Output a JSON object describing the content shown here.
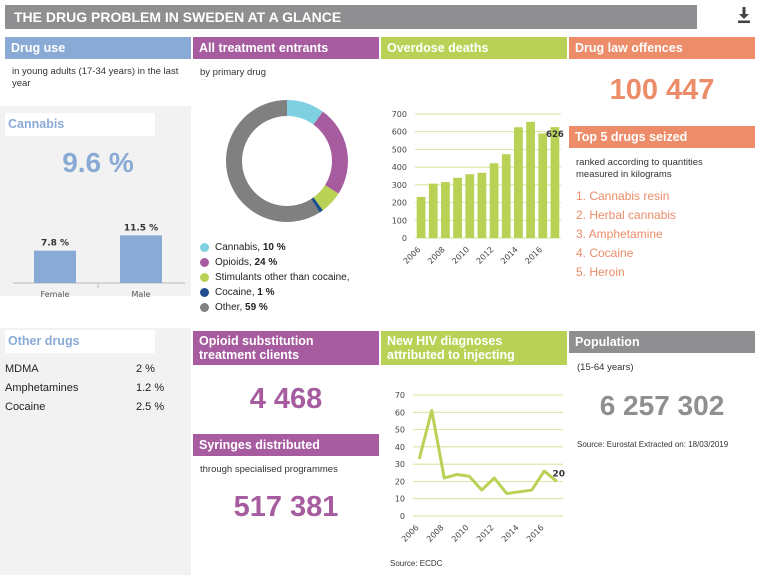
{
  "title": "THE DRUG PROBLEM IN SWEDEN AT A GLANCE",
  "drug_use": {
    "header": "Drug use",
    "subtitle": "in young adults (17-34 years) in the last year",
    "cannabis": {
      "label": "Cannabis",
      "value": "9.6 %",
      "bars": [
        {
          "label": "Female",
          "value": 7.8,
          "value_label": "7.8 %"
        },
        {
          "label": "Male",
          "value": 11.5,
          "value_label": "11.5 %"
        }
      ]
    }
  },
  "treatment": {
    "header": "All treatment entrants",
    "subtitle": "by primary drug",
    "legend": [
      {
        "name": "Cannabis, ",
        "pct": "10 %",
        "value": 10,
        "color": "#7fd0e1"
      },
      {
        "name": "Opioids, ",
        "pct": "24 %",
        "value": 24,
        "color": "#a65c9f"
      },
      {
        "name": "Stimulants other than cocaine,",
        "pct": "",
        "value": 6,
        "color": "#b9d256"
      },
      {
        "name": "Cocaine, ",
        "pct": "1 %",
        "value": 1,
        "color": "#1f4e8c"
      },
      {
        "name": "Other, ",
        "pct": "59 %",
        "value": 59,
        "color": "#808080"
      }
    ]
  },
  "overdose": {
    "header": "Overdose deaths",
    "last_label": "626",
    "y_ticks": [
      "0",
      "100",
      "200",
      "300",
      "400",
      "500",
      "600",
      "700"
    ],
    "x_ticks": [
      "2006",
      "2008",
      "2010",
      "2012",
      "2014",
      "2016"
    ]
  },
  "law": {
    "header": "Drug law offences",
    "value": "100 447"
  },
  "top5": {
    "header": "Top 5 drugs seized",
    "subtitle": "ranked according to quantities measured in kilograms",
    "items": [
      "1. Cannabis resin",
      "2. Herbal cannabis",
      "3. Amphetamine",
      "4. Cocaine",
      "5. Heroin"
    ]
  },
  "other_drugs": {
    "header": "Other drugs",
    "rows": [
      {
        "name": "MDMA",
        "value": "2 %"
      },
      {
        "name": "Amphetamines",
        "value": "1.2 %"
      },
      {
        "name": "Cocaine",
        "value": "2.5 %"
      }
    ]
  },
  "opioid_sub": {
    "header": "Opioid substitution treatment clients",
    "value": "4 468"
  },
  "syringes": {
    "header": "Syringes distributed",
    "subtitle": "through specialised programmes",
    "value": "517 381"
  },
  "hiv": {
    "header": "New HIV diagnoses attributed to injecting",
    "last_label": "20",
    "source": "Source: ECDC",
    "y_ticks": [
      "0",
      "10",
      "20",
      "30",
      "40",
      "50",
      "60",
      "70"
    ],
    "x_ticks": [
      "2006",
      "2008",
      "2010",
      "2012",
      "2014",
      "2016"
    ]
  },
  "population": {
    "header": "Population",
    "subtitle": "(15-64 years)",
    "value": "6 257 302",
    "source": "Source: Eurostat Extracted on: 18/03/2019"
  },
  "chart_data": [
    {
      "type": "bar",
      "title": "Cannabis",
      "categories": [
        "Female",
        "Male"
      ],
      "values": [
        7.8,
        11.5
      ],
      "ylim": [
        0,
        14
      ]
    },
    {
      "type": "pie",
      "title": "All treatment entrants",
      "categories": [
        "Cannabis",
        "Opioids",
        "Stimulants other than cocaine",
        "Cocaine",
        "Other"
      ],
      "values": [
        10,
        24,
        6,
        1,
        59
      ]
    },
    {
      "type": "bar",
      "title": "Overdose deaths",
      "x": [
        2006,
        2007,
        2008,
        2009,
        2010,
        2011,
        2012,
        2013,
        2014,
        2015,
        2016,
        2017
      ],
      "values": [
        232,
        307,
        316,
        340,
        360,
        368,
        422,
        473,
        625,
        656,
        590,
        626
      ],
      "ylim": [
        0,
        700
      ],
      "grid": true
    },
    {
      "type": "line",
      "title": "New HIV diagnoses attributed to injecting",
      "x": [
        2006,
        2007,
        2008,
        2009,
        2010,
        2011,
        2012,
        2013,
        2014,
        2015,
        2016,
        2017
      ],
      "values": [
        33,
        61,
        22,
        24,
        23,
        15,
        22,
        13,
        14,
        15,
        26,
        20
      ],
      "ylim": [
        0,
        70
      ],
      "grid": true
    }
  ]
}
